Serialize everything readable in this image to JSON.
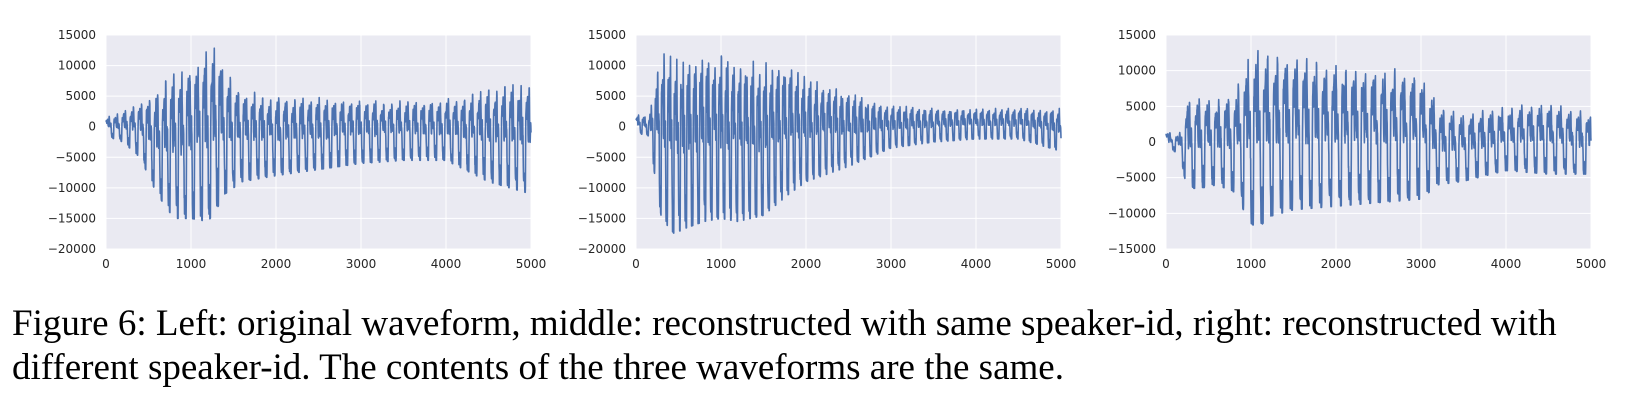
{
  "caption": "Figure 6: Left: original waveform, middle: reconstructed with same speaker-id, right: reconstructed with different speaker-id. The contents of the three waveforms are the same.",
  "colors": {
    "plot_background": "#eaeaf2",
    "grid": "#ffffff",
    "series": "#4c72b0",
    "text": "#262626"
  },
  "chart_data": [
    {
      "type": "line",
      "panel": "left",
      "title": "",
      "xlabel": "",
      "ylabel": "",
      "xlim": [
        0,
        5000
      ],
      "ylim": [
        -20000,
        15000
      ],
      "grid": true,
      "x_ticks": [
        0,
        1000,
        2000,
        3000,
        4000,
        5000
      ],
      "x_tick_labels": [
        "0",
        "1000",
        "2000",
        "3000",
        "4000",
        "5000"
      ],
      "y_ticks": [
        -20000,
        -15000,
        -10000,
        -5000,
        0,
        5000,
        10000,
        15000
      ],
      "y_tick_labels": [
        "−20000",
        "−15000",
        "−10000",
        "−5000",
        "0",
        "5000",
        "10000",
        "15000"
      ],
      "series": [
        {
          "name": "",
          "envelope_x": [
            0,
            200,
            400,
            600,
            800,
            1000,
            1200,
            1300,
            1400,
            1600,
            1800,
            2000,
            2500,
            3000,
            3500,
            4000,
            4500,
            5000
          ],
          "upper": [
            1500,
            2500,
            4000,
            6000,
            9000,
            10000,
            12500,
            13000,
            9000,
            6000,
            5500,
            5000,
            4800,
            4500,
            4200,
            4500,
            6000,
            7500
          ],
          "lower": [
            -1500,
            -2500,
            -5000,
            -11000,
            -15000,
            -15000,
            -15500,
            -13500,
            -11000,
            -9000,
            -8500,
            -8000,
            -7000,
            -6000,
            -5500,
            -5500,
            -9000,
            -11000
          ],
          "cycle_length": 95
        }
      ]
    },
    {
      "type": "line",
      "panel": "middle",
      "title": "",
      "xlabel": "",
      "ylabel": "",
      "xlim": [
        0,
        5000
      ],
      "ylim": [
        -20000,
        15000
      ],
      "grid": true,
      "x_ticks": [
        0,
        1000,
        2000,
        3000,
        4000,
        5000
      ],
      "x_tick_labels": [
        "0",
        "1000",
        "2000",
        "3000",
        "4000",
        "5000"
      ],
      "y_ticks": [
        -20000,
        -15000,
        -10000,
        -5000,
        0,
        5000,
        10000,
        15000
      ],
      "y_tick_labels": [
        "−20000",
        "−15000",
        "−10000",
        "−5000",
        "0",
        "5000",
        "10000",
        "15000"
      ],
      "series": [
        {
          "name": "",
          "envelope_x": [
            0,
            150,
            300,
            450,
            600,
            800,
            1000,
            1200,
            1500,
            1800,
            2000,
            2500,
            3000,
            3500,
            4000,
            4500,
            5000
          ],
          "upper": [
            2000,
            1500,
            12000,
            11500,
            11000,
            12000,
            12000,
            11000,
            10500,
            10000,
            8000,
            5500,
            3500,
            3000,
            3000,
            3000,
            3000
          ],
          "lower": [
            -1000,
            -1500,
            -15000,
            -17500,
            -16500,
            -15500,
            -15000,
            -15500,
            -14500,
            -11000,
            -9000,
            -6500,
            -3500,
            -2500,
            -2000,
            -2000,
            -4000
          ],
          "cycle_length": 75
        }
      ]
    },
    {
      "type": "line",
      "panel": "right",
      "title": "",
      "xlabel": "",
      "ylabel": "",
      "xlim": [
        0,
        5000
      ],
      "ylim": [
        -15000,
        15000
      ],
      "grid": true,
      "x_ticks": [
        0,
        1000,
        2000,
        3000,
        4000,
        5000
      ],
      "x_tick_labels": [
        "0",
        "1000",
        "2000",
        "3000",
        "4000",
        "5000"
      ],
      "y_ticks": [
        -15000,
        -10000,
        -5000,
        0,
        5000,
        10000,
        15000
      ],
      "y_tick_labels": [
        "−15000",
        "−10000",
        "−5000",
        "0",
        "5000",
        "10000",
        "15000"
      ],
      "series": [
        {
          "name": "",
          "envelope_x": [
            0,
            150,
            250,
            400,
            600,
            800,
            1000,
            1100,
            1200,
            1500,
            2000,
            2500,
            3000,
            3200,
            3500,
            4000,
            4500,
            5000
          ],
          "upper": [
            1500,
            1000,
            6000,
            6500,
            6000,
            7000,
            12500,
            13000,
            12500,
            12000,
            11000,
            10500,
            10000,
            5000,
            4000,
            5000,
            5500,
            4000
          ],
          "lower": [
            -1000,
            -1500,
            -6500,
            -6500,
            -6000,
            -7000,
            -11500,
            -12000,
            -10500,
            -9500,
            -9000,
            -8500,
            -8000,
            -6000,
            -5500,
            -4000,
            -4500,
            -4500
          ],
          "cycle_length": 115
        }
      ]
    }
  ]
}
